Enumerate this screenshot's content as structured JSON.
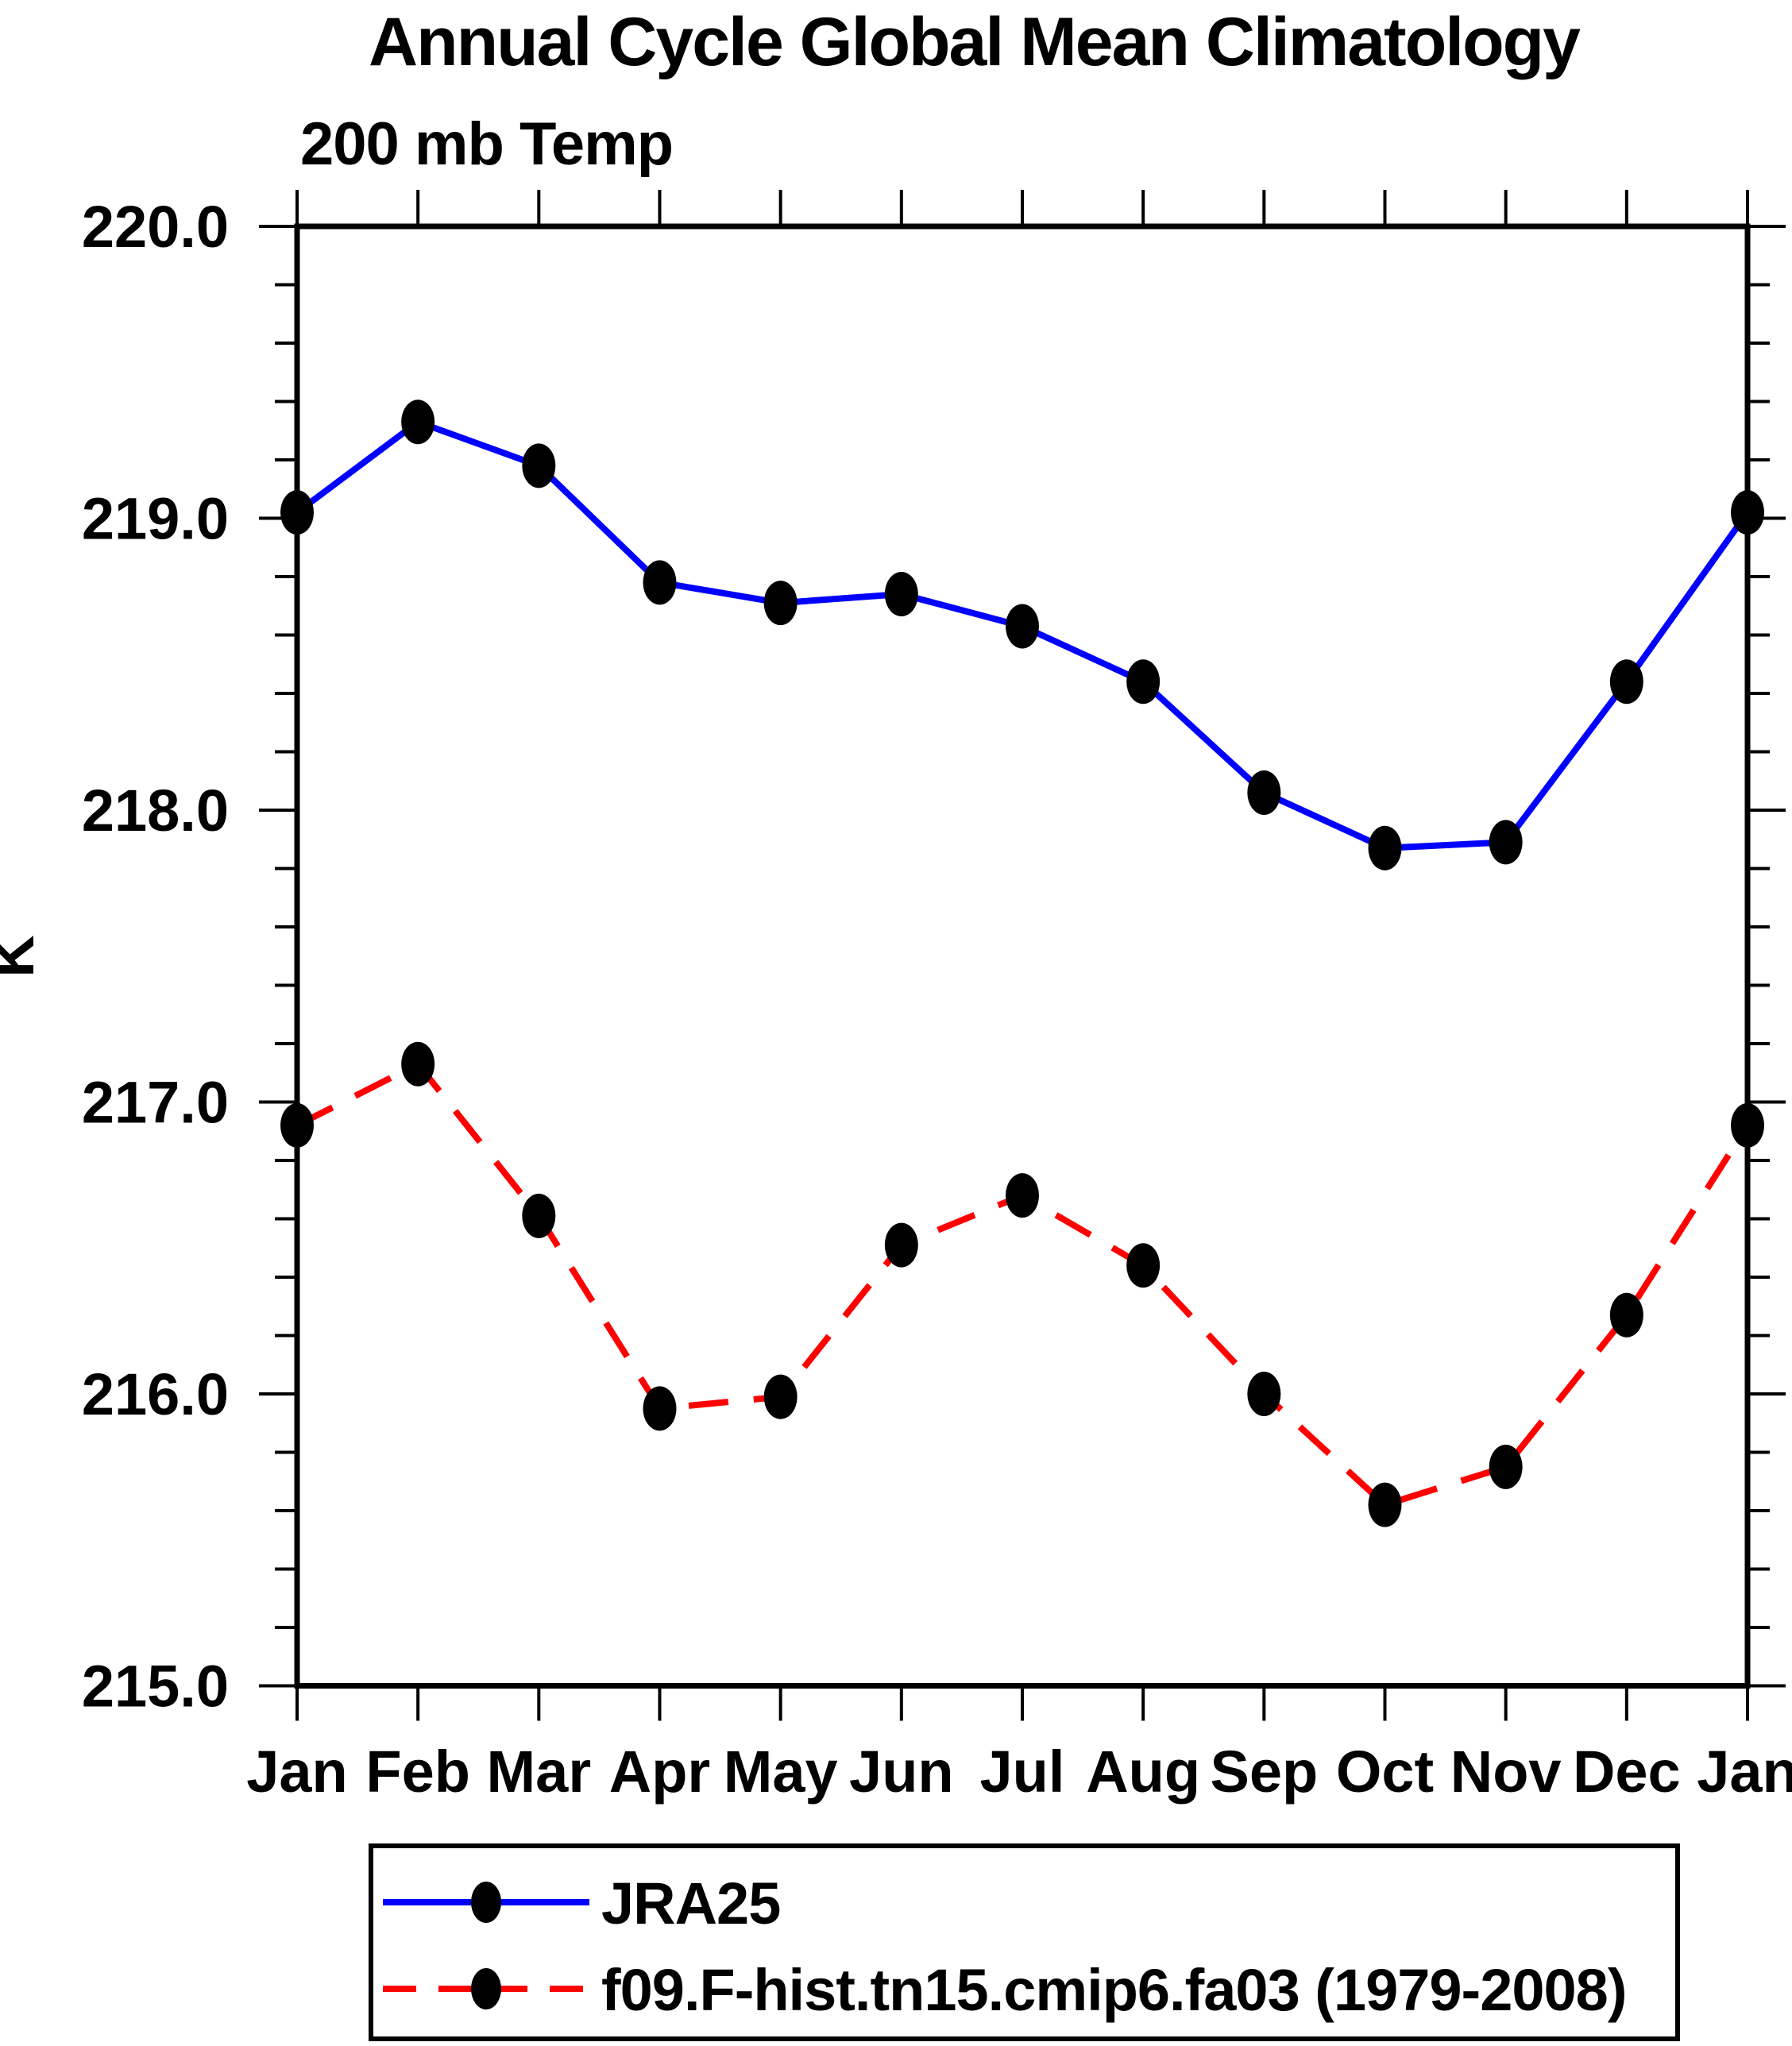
{
  "figure": {
    "title": "Annual Cycle Global Mean Climatology",
    "subtitle": "200 mb Temp",
    "y_axis_label": "K"
  },
  "chart_data": {
    "type": "line",
    "title": "Annual Cycle Global Mean Climatology",
    "subtitle": "200 mb Temp",
    "xlabel": "",
    "ylabel": "K",
    "categories": [
      "Jan",
      "Feb",
      "Mar",
      "Apr",
      "May",
      "Jun",
      "Jul",
      "Aug",
      "Sep",
      "Oct",
      "Nov",
      "Dec",
      "Jan"
    ],
    "ylim": [
      215.0,
      220.0
    ],
    "ytick_major_values": [
      220.0,
      219.0,
      218.0,
      217.0,
      216.0,
      215.0
    ],
    "ytick_major_labels": [
      "220.0",
      "219.0",
      "218.0",
      "217.0",
      "216.0",
      "215.0"
    ],
    "ytick_minor_step": 0.2,
    "grid": false,
    "legend_position": "bottom-box",
    "marker": "black-dot",
    "marker_color": "#000000",
    "axis_color": "#000000",
    "series": [
      {
        "name": "JRA25",
        "color": "#0000FF",
        "line_style": "solid",
        "values": [
          219.02,
          219.33,
          219.18,
          218.78,
          218.71,
          218.74,
          218.63,
          218.44,
          218.06,
          217.87,
          217.89,
          218.44,
          219.02
        ]
      },
      {
        "name": "f09.F-hist.tn15.cmip6.fa03 (1979-2008)",
        "color": "#FF0000",
        "line_style": "dashed",
        "values": [
          216.92,
          217.13,
          216.61,
          215.95,
          215.99,
          216.51,
          216.68,
          216.44,
          216.0,
          215.62,
          215.75,
          216.27,
          216.92
        ]
      }
    ]
  }
}
